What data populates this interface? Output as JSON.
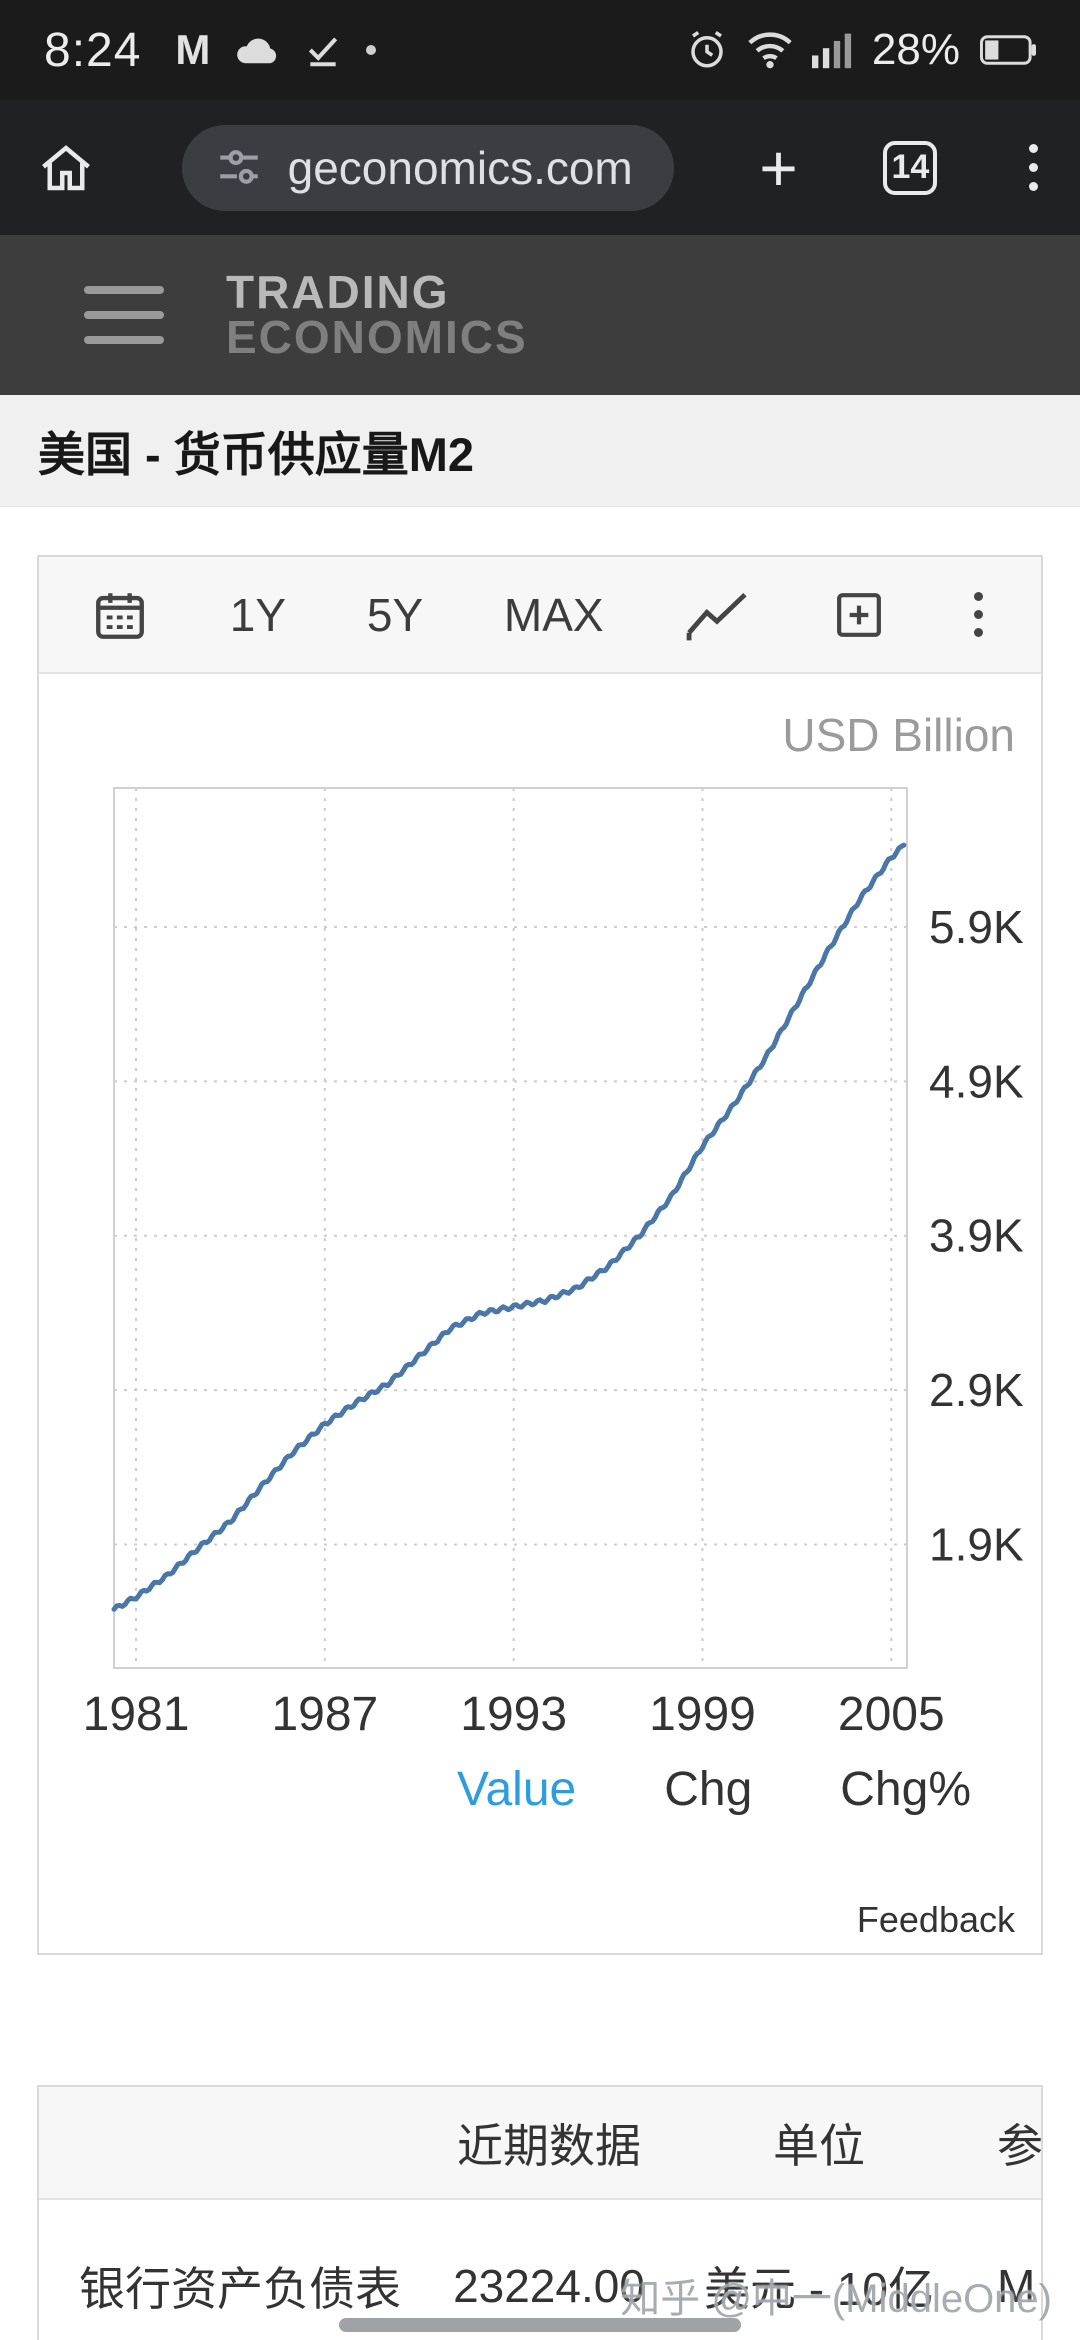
{
  "status_bar": {
    "time": "8:24",
    "battery_pct": "28%"
  },
  "browser_bar": {
    "url": "geconomics.com",
    "tab_count": "14"
  },
  "site_header": {
    "logo_top": "TRADING",
    "logo_bottom": "ECONOMICS"
  },
  "page_title": "美国 - 货币供应量M2",
  "chart_card": {
    "ranges": {
      "y1": "1Y",
      "y5": "5Y",
      "max": "MAX"
    },
    "unit_label": "USD Billion",
    "tabs": {
      "value": "Value",
      "chg": "Chg",
      "chgpct": "Chg%"
    },
    "feedback_label": "Feedback"
  },
  "chart_data": {
    "type": "line",
    "title": "美国 - 货币供应量M2",
    "ylabel": "USD Billion",
    "xlim": [
      1980.3,
      2005.5
    ],
    "ylim": [
      1100,
      6800
    ],
    "grid": "dotted",
    "line_color": "#4a76a8",
    "x_ticks": [
      {
        "value": 1981,
        "label": "1981"
      },
      {
        "value": 1987,
        "label": "1987"
      },
      {
        "value": 1993,
        "label": "1993"
      },
      {
        "value": 1999,
        "label": "1999"
      },
      {
        "value": 2005,
        "label": "2005"
      }
    ],
    "y_ticks": [
      {
        "value": 1900,
        "label": "1.9K"
      },
      {
        "value": 2900,
        "label": "2.9K"
      },
      {
        "value": 3900,
        "label": "3.9K"
      },
      {
        "value": 4900,
        "label": "4.9K"
      },
      {
        "value": 5900,
        "label": "5.9K"
      }
    ],
    "series": [
      {
        "name": "M2",
        "x": [
          1980.3,
          1981,
          1982,
          1983,
          1984,
          1985,
          1986,
          1987,
          1988,
          1989,
          1990,
          1991,
          1992,
          1993,
          1994,
          1995,
          1996,
          1997,
          1998,
          1999,
          2000,
          2001,
          2002,
          2003,
          2004,
          2005,
          2005.4
        ],
        "y": [
          1480,
          1560,
          1700,
          1880,
          2050,
          2280,
          2500,
          2680,
          2820,
          2940,
          3120,
          3300,
          3400,
          3440,
          3480,
          3560,
          3700,
          3900,
          4150,
          4480,
          4750,
          5050,
          5400,
          5750,
          6080,
          6350,
          6430
        ]
      }
    ]
  },
  "summary_table": {
    "headers": [
      "近期数据",
      "单位",
      "参"
    ],
    "rows": [
      {
        "indicator": "银行资产负债表",
        "value": "23224.00",
        "unit": "美元 - 10亿",
        "ref": "M"
      }
    ]
  },
  "watermark": "知乎 @中一(MiddleOne)"
}
